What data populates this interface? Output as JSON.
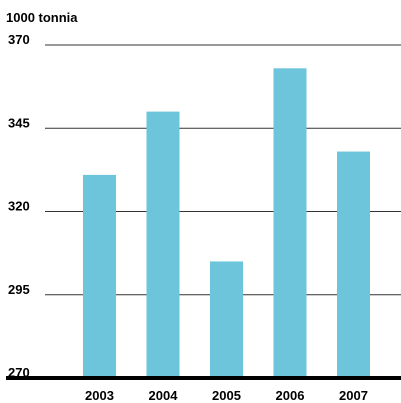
{
  "chart_data": {
    "type": "bar",
    "y_label": "1000 tonnia",
    "categories": [
      "2003",
      "2004",
      "2005",
      "2006",
      "2007"
    ],
    "values": [
      331,
      350,
      305,
      363,
      338
    ],
    "color": "#6cc5da",
    "ylim": [
      270,
      370
    ],
    "yticks": [
      270,
      295,
      320,
      345,
      370
    ],
    "grid": true
  }
}
